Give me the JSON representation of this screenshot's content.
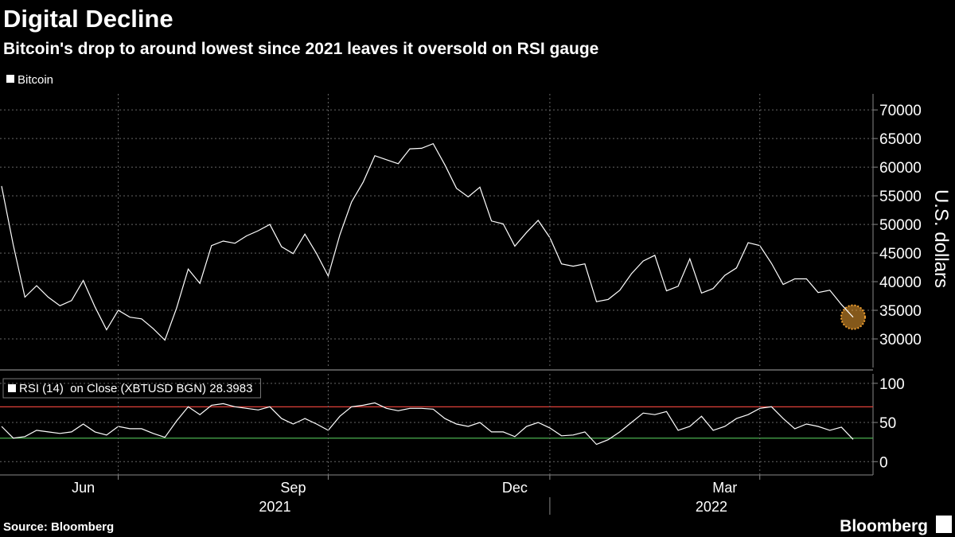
{
  "title": "Digital Decline",
  "subtitle": "Bitcoin's drop to around lowest since 2021 leaves it oversold on RSI gauge",
  "source": "Source: Bloomberg",
  "brand": "Bloomberg",
  "chart_data": [
    {
      "type": "line",
      "series": [
        {
          "name": "Bitcoin",
          "color": "#ffffff",
          "values": [
            56700,
            46400,
            37300,
            39300,
            37300,
            35800,
            36700,
            40200,
            35600,
            31600,
            35000,
            33800,
            33500,
            31800,
            29800,
            35400,
            42200,
            39700,
            46300,
            47100,
            46700,
            48000,
            48900,
            50000,
            46100,
            44900,
            48300,
            44900,
            41000,
            48200,
            53900,
            57400,
            62000,
            61300,
            60600,
            63200,
            63300,
            64100,
            60400,
            56300,
            54800,
            56500,
            50600,
            50100,
            46200,
            48600,
            50700,
            47700,
            43100,
            42700,
            43100,
            36500,
            36900,
            38500,
            41400,
            43600,
            44600,
            38400,
            39200,
            44000,
            38000,
            38800,
            41100,
            42400,
            46800,
            46300,
            43200,
            39500,
            40500,
            40500,
            38100,
            38500,
            36000,
            33800
          ]
        }
      ],
      "ylabel": "U.S. dollars",
      "ylim": [
        25000,
        72800
      ],
      "yticks": [
        30000,
        35000,
        40000,
        45000,
        50000,
        55000,
        60000,
        65000,
        70000
      ],
      "grid": true,
      "highlight_color": "#f0a030"
    },
    {
      "type": "line",
      "categories": [
        null,
        null,
        null,
        null,
        null,
        null,
        null,
        "Jun",
        null,
        null,
        null,
        null,
        null,
        null,
        null,
        null,
        null,
        null,
        null,
        null,
        null,
        null,
        null,
        null,
        null,
        "Sep",
        null,
        null,
        null,
        null,
        null,
        null,
        null,
        null,
        null,
        null,
        null,
        null,
        null,
        null,
        null,
        null,
        null,
        null,
        "Dec",
        null,
        null,
        null,
        null,
        null,
        null,
        null,
        null,
        null,
        null,
        null,
        null,
        null,
        null,
        null,
        null,
        null,
        "Mar",
        null,
        null,
        null,
        null,
        null,
        null,
        null,
        null,
        null,
        null,
        null
      ],
      "x_groups": [
        "2021",
        "2022"
      ],
      "series": [
        {
          "name": "RSI (14)  on Close (XBTUSD BGN) 28.3983",
          "color": "#ffffff",
          "values": [
            45,
            30,
            32,
            40,
            38,
            36,
            38,
            48,
            38,
            34,
            45,
            42,
            42,
            36,
            31,
            52,
            70,
            60,
            72,
            74,
            70,
            68,
            66,
            70,
            55,
            48,
            55,
            48,
            40,
            58,
            70,
            72,
            75,
            68,
            65,
            68,
            68,
            67,
            55,
            48,
            45,
            50,
            38,
            38,
            32,
            45,
            50,
            43,
            33,
            34,
            38,
            22,
            28,
            38,
            50,
            62,
            60,
            64,
            40,
            45,
            58,
            40,
            45,
            55,
            60,
            68,
            70,
            55,
            42,
            48,
            45,
            40,
            44,
            28.3983
          ]
        }
      ],
      "reference_lines": [
        {
          "value": 70,
          "color": "#e0403a"
        },
        {
          "value": 30,
          "color": "#4caf50"
        }
      ],
      "ylim": [
        -17,
        112
      ],
      "yticks": [
        0,
        50,
        100
      ],
      "grid": true
    }
  ]
}
